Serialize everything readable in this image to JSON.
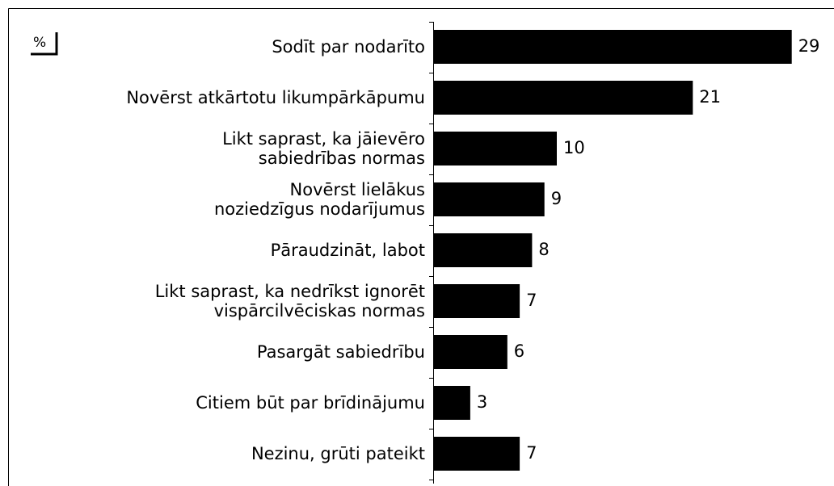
{
  "chart_data": {
    "type": "bar",
    "orientation": "horizontal",
    "unit": "%",
    "categories": [
      "Sodīt par nodarīto",
      "Novērst atkārtotu likumpārkāpumu",
      "Likt saprast, ka jāievēro\nsabiedrības normas",
      "Novērst lielākus\nnoziedzīgus nodarījumus",
      "Pāraudzināt, labot",
      "Likt saprast, ka nedrīkst ignorēt\nvispārcilvēciskas normas",
      "Pasargāt sabiedrību",
      "Citiem būt par brīdinājumu",
      "Nezinu, grūti pateikt"
    ],
    "values": [
      29,
      21,
      10,
      9,
      8,
      7,
      6,
      3,
      7
    ],
    "color": "#000000",
    "xlim": [
      0,
      32
    ]
  }
}
